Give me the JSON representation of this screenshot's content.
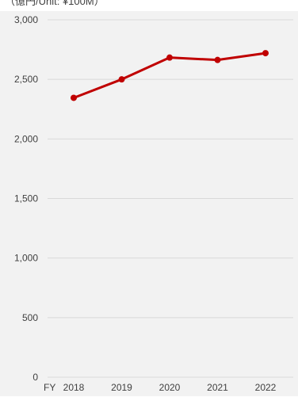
{
  "chart_data": {
    "type": "line",
    "title": "（億円/Unit: ¥100M）",
    "xlabel": "FY",
    "ylabel": "",
    "categories": [
      "2018",
      "2019",
      "2020",
      "2021",
      "2022"
    ],
    "series": [
      {
        "values": [
          2345,
          2500,
          2683,
          2663,
          2720
        ]
      }
    ],
    "ylim": [
      0,
      3000
    ],
    "yticks": [
      "0",
      "500",
      "1,000",
      "1,500",
      "2,000",
      "2,500",
      "3,000"
    ],
    "grid": true,
    "legend": "none",
    "colors": {
      "line": "#c00000",
      "plot_background": "#f2f2f2",
      "gridline": "#d9d9d9"
    }
  }
}
